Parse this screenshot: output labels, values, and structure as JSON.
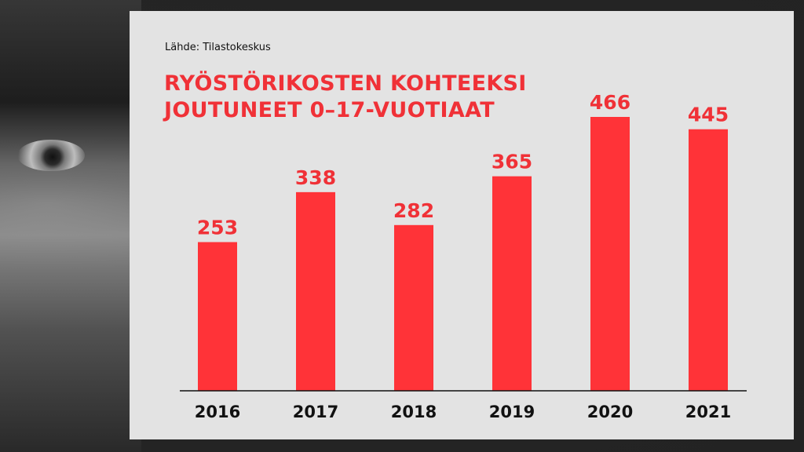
{
  "chart_data": {
    "type": "bar",
    "source": "Lähde: Tilastokeskus",
    "title_lines": [
      "RYÖSTÖRIKOSTEN KOHTEEKSI",
      "JOUTUNEET 0–17-VUOTIAAT"
    ],
    "categories": [
      "2016",
      "2017",
      "2018",
      "2019",
      "2020",
      "2021"
    ],
    "values": [
      253,
      338,
      282,
      365,
      466,
      445
    ],
    "bar_color": "#ff3338",
    "label_color": "#f03137",
    "ylim": [
      0,
      466
    ],
    "grid": false,
    "legend": "none"
  }
}
